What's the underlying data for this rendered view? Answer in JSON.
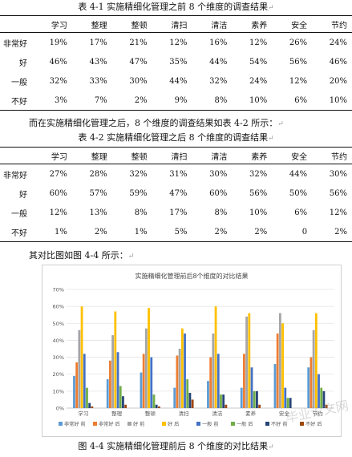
{
  "table1": {
    "caption": "表 4-1  实施精细化管理之前 8 个维度的调查结果",
    "headers": [
      "",
      "学习",
      "整理",
      "整顿",
      "清扫",
      "清洁",
      "素养",
      "安全",
      "节约"
    ],
    "rows": [
      {
        "label": "非常好",
        "values": [
          "19%",
          "17%",
          "21%",
          "12%",
          "16%",
          "12%",
          "26%",
          "24%"
        ]
      },
      {
        "label": "好",
        "values": [
          "46%",
          "43%",
          "47%",
          "35%",
          "44%",
          "54%",
          "56%",
          "46%"
        ]
      },
      {
        "label": "一般",
        "values": [
          "32%",
          "33%",
          "30%",
          "44%",
          "32%",
          "24%",
          "12%",
          "20%"
        ]
      },
      {
        "label": "不好",
        "values": [
          "3%",
          "7%",
          "2%",
          "9%",
          "8%",
          "10%",
          "6%",
          "10%"
        ]
      }
    ]
  },
  "para1": "而在实施精细化管理之后，8 个维度的调查结果如表 4-2 所示：",
  "table2": {
    "caption": "表 4-2  实施精细化管理之后 8 个维度的调查结果",
    "headers": [
      "",
      "学习",
      "整理",
      "整顿",
      "清扫",
      "清洁",
      "素养",
      "安全",
      "节约"
    ],
    "rows": [
      {
        "label": "非常好",
        "values": [
          "27%",
          "28%",
          "32%",
          "31%",
          "30%",
          "32%",
          "44%",
          "30%"
        ]
      },
      {
        "label": "好",
        "values": [
          "60%",
          "57%",
          "59%",
          "47%",
          "60%",
          "56%",
          "50%",
          "56%"
        ]
      },
      {
        "label": "一般",
        "values": [
          "12%",
          "13%",
          "8%",
          "17%",
          "8%",
          "10%",
          "6%",
          "12%"
        ]
      },
      {
        "label": "不好",
        "values": [
          "1%",
          "2%",
          "1%",
          "5%",
          "2%",
          "2%",
          "0",
          "2%"
        ]
      }
    ]
  },
  "para2": "其对比图如图 4-4 所示：",
  "figure_caption": "图 4-4  实施精细化管理前后 8 个维度的对比结果",
  "return_mark": "↵",
  "chart_data": {
    "type": "bar",
    "title": "实施精细化管理前后8个维度的对比结果",
    "categories": [
      "学习",
      "整理",
      "整顿",
      "清扫",
      "清洁",
      "素养",
      "安全",
      "节约"
    ],
    "ylim": [
      0,
      70
    ],
    "yticks": [
      "0%",
      "10%",
      "20%",
      "30%",
      "40%",
      "50%",
      "60%",
      "70%"
    ],
    "grid": true,
    "legend_position": "bottom",
    "series": [
      {
        "name": "非常好 前",
        "color": "#5B9BD5",
        "values": [
          19,
          17,
          21,
          12,
          16,
          12,
          26,
          24
        ]
      },
      {
        "name": "非常好 后",
        "color": "#ED7D31",
        "values": [
          27,
          28,
          32,
          31,
          30,
          32,
          44,
          30
        ]
      },
      {
        "name": "好 前",
        "color": "#A5A5A5",
        "values": [
          46,
          43,
          47,
          35,
          44,
          54,
          56,
          46
        ]
      },
      {
        "name": "好 后",
        "color": "#FFC000",
        "values": [
          60,
          57,
          59,
          47,
          60,
          56,
          50,
          56
        ]
      },
      {
        "name": "一般 前",
        "color": "#4472C4",
        "values": [
          32,
          33,
          30,
          44,
          32,
          24,
          12,
          20
        ]
      },
      {
        "name": "一般 后",
        "color": "#70AD47",
        "values": [
          12,
          13,
          8,
          17,
          8,
          10,
          6,
          12
        ]
      },
      {
        "name": "不好 前",
        "color": "#264478",
        "values": [
          3,
          7,
          2,
          9,
          8,
          10,
          6,
          10
        ]
      },
      {
        "name": "不好 后",
        "color": "#9E480E",
        "values": [
          1,
          2,
          1,
          5,
          2,
          2,
          0,
          2
        ]
      }
    ]
  },
  "watermark": "毕业论文网"
}
